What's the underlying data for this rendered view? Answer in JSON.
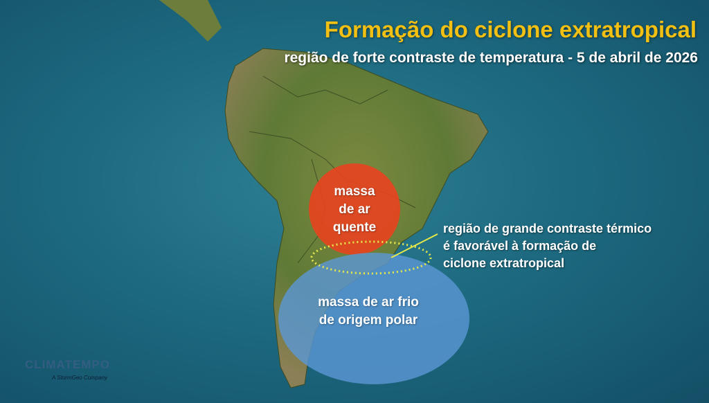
{
  "header": {
    "title": "Formação do ciclone extratropical",
    "subtitle": "região de forte contraste de temperatura - 5 de abril de 2026"
  },
  "map": {
    "warm_mass": {
      "label_lines": [
        "massa",
        "de ar",
        "quente"
      ],
      "color": "#e8421f"
    },
    "cold_mass": {
      "label_lines": [
        "massa de ar frio",
        "de origem polar"
      ],
      "color": "#5b97d6"
    },
    "contrast_zone": {
      "color": "#e6e84a",
      "note_lines": [
        "região de grande contraste térmico",
        "é favorável à formação de",
        "ciclone extratropical"
      ]
    },
    "ocean_color": "#1d6a80",
    "land_color": "#6e7f3a"
  },
  "logo": {
    "name": "CLIMATEMPO",
    "tagline": "A StormGeo Company"
  }
}
